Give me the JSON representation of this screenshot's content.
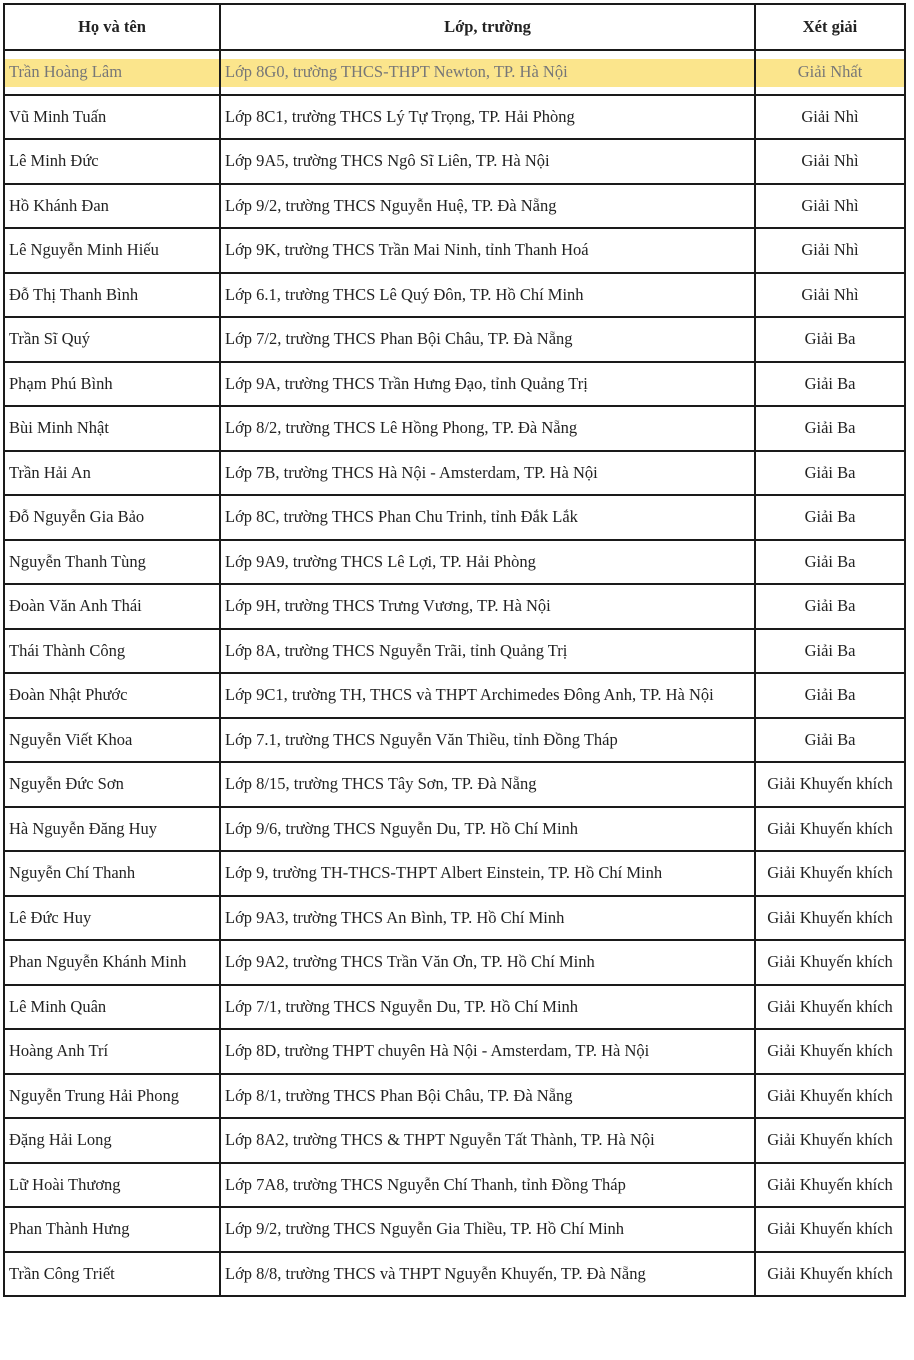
{
  "headers": [
    "Họ và tên",
    "Lớp, trường",
    "Xét giải"
  ],
  "highlight_color": "#fbe58c",
  "rows": [
    {
      "name": "Trần Hoàng Lâm",
      "school": "Lớp 8G0, trường THCS-THPT Newton, TP. Hà Nội",
      "award": "Giải Nhất",
      "highlighted": true
    },
    {
      "name": "Vũ Minh Tuấn",
      "school": "Lớp 8C1, trường THCS Lý Tự Trọng, TP. Hải Phòng",
      "award": "Giải Nhì"
    },
    {
      "name": "Lê Minh Đức",
      "school": "Lớp 9A5, trường THCS Ngô Sĩ Liên, TP. Hà Nội",
      "award": "Giải Nhì"
    },
    {
      "name": "Hồ Khánh Đan",
      "school": "Lớp 9/2, trường THCS Nguyễn Huệ, TP. Đà Nẵng",
      "award": "Giải Nhì"
    },
    {
      "name": "Lê Nguyễn Minh Hiếu",
      "school": "Lớp 9K, trường THCS Trần Mai Ninh, tỉnh Thanh Hoá",
      "award": "Giải Nhì"
    },
    {
      "name": "Đỗ Thị Thanh Bình",
      "school": "Lớp 6.1, trường THCS Lê Quý Đôn, TP. Hồ Chí Minh",
      "award": "Giải Nhì"
    },
    {
      "name": "Trần Sĩ Quý",
      "school": "Lớp 7/2, trường THCS Phan Bội Châu, TP. Đà Nẵng",
      "award": "Giải Ba"
    },
    {
      "name": "Phạm Phú Bình",
      "school": "Lớp 9A, trường THCS Trần Hưng Đạo, tỉnh Quảng Trị",
      "award": "Giải Ba"
    },
    {
      "name": "Bùi Minh Nhật",
      "school": "Lớp 8/2, trường THCS Lê Hồng Phong, TP. Đà Nẵng",
      "award": "Giải Ba"
    },
    {
      "name": "Trần Hải An",
      "school": "Lớp 7B, trường THCS Hà Nội - Amsterdam, TP. Hà Nội",
      "award": "Giải Ba"
    },
    {
      "name": "Đỗ Nguyễn Gia Bảo",
      "school": "Lớp 8C, trường THCS Phan Chu Trinh, tỉnh Đắk Lắk",
      "award": "Giải Ba"
    },
    {
      "name": "Nguyễn Thanh Tùng",
      "school": "Lớp 9A9, trường THCS Lê Lợi, TP. Hải Phòng",
      "award": "Giải Ba"
    },
    {
      "name": "Đoàn Văn Anh Thái",
      "school": "Lớp 9H, trường THCS Trưng Vương, TP. Hà Nội",
      "award": "Giải Ba"
    },
    {
      "name": "Thái Thành Công",
      "school": "Lớp 8A, trường THCS Nguyễn Trãi, tỉnh Quảng Trị",
      "award": "Giải Ba"
    },
    {
      "name": "Đoàn Nhật Phước",
      "school": "Lớp 9C1, trường TH, THCS và THPT Archimedes Đông Anh, TP. Hà Nội",
      "award": "Giải Ba"
    },
    {
      "name": "Nguyễn Viết Khoa",
      "school": "Lớp 7.1, trường THCS Nguyễn Văn Thiều, tỉnh Đồng Tháp",
      "award": "Giải Ba"
    },
    {
      "name": "Nguyễn Đức Sơn",
      "school": "Lớp 8/15, trường THCS Tây Sơn, TP. Đà Nẵng",
      "award": "Giải Khuyến khích"
    },
    {
      "name": "Hà Nguyễn Đăng Huy",
      "school": "Lớp 9/6, trường THCS Nguyễn Du, TP. Hồ Chí Minh",
      "award": "Giải Khuyến khích"
    },
    {
      "name": "Nguyễn Chí Thanh",
      "school": "Lớp 9, trường TH-THCS-THPT Albert Einstein, TP. Hồ Chí Minh",
      "award": "Giải Khuyến khích"
    },
    {
      "name": "Lê Đức Huy",
      "school": "Lớp 9A3, trường THCS An Bình, TP. Hồ Chí Minh",
      "award": "Giải Khuyến khích"
    },
    {
      "name": "Phan Nguyễn Khánh Minh",
      "school": "Lớp 9A2, trường THCS Trần Văn Ơn, TP. Hồ Chí Minh",
      "award": "Giải Khuyến khích"
    },
    {
      "name": "Lê Minh Quân",
      "school": "Lớp 7/1, trường THCS Nguyễn Du, TP. Hồ Chí Minh",
      "award": "Giải Khuyến khích"
    },
    {
      "name": "Hoàng Anh Trí",
      "school": "Lớp 8D, trường THPT chuyên Hà Nội - Amsterdam, TP. Hà Nội",
      "award": "Giải Khuyến khích"
    },
    {
      "name": "Nguyễn Trung Hải Phong",
      "school": "Lớp 8/1, trường THCS Phan Bội Châu, TP. Đà Nẵng",
      "award": "Giải Khuyến khích"
    },
    {
      "name": "Đặng Hải Long",
      "school": "Lớp 8A2, trường THCS & THPT Nguyễn Tất Thành, TP. Hà Nội",
      "award": "Giải Khuyến khích"
    },
    {
      "name": "Lữ Hoài Thương",
      "school": "Lớp 7A8, trường THCS Nguyễn Chí Thanh, tỉnh Đồng Tháp",
      "award": "Giải Khuyến khích"
    },
    {
      "name": "Phan Thành Hưng",
      "school": "Lớp 9/2, trường THCS Nguyễn Gia Thiều, TP. Hồ Chí Minh",
      "award": "Giải Khuyến khích"
    },
    {
      "name": "Trần Công Triết",
      "school": "Lớp 8/8, trường THCS và THPT Nguyễn Khuyến, TP. Đà Nẵng",
      "award": "Giải Khuyến khích"
    }
  ]
}
